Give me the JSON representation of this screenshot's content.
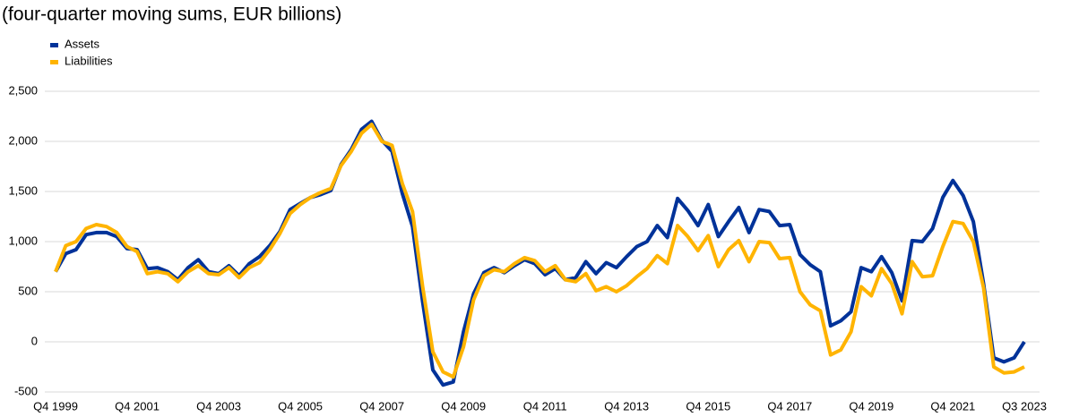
{
  "chart_data": {
    "type": "line",
    "title": "(four-quarter moving sums, EUR billions)",
    "categories": [
      "Q4 1999",
      null,
      null,
      null,
      null,
      null,
      null,
      null,
      "Q4 2001",
      null,
      null,
      null,
      null,
      null,
      null,
      null,
      "Q4 2003",
      null,
      null,
      null,
      null,
      null,
      null,
      null,
      "Q4 2005",
      null,
      null,
      null,
      null,
      null,
      null,
      null,
      "Q4 2007",
      null,
      null,
      null,
      null,
      null,
      null,
      null,
      "Q4 2009",
      null,
      null,
      null,
      null,
      null,
      null,
      null,
      "Q4 2011",
      null,
      null,
      null,
      null,
      null,
      null,
      null,
      "Q4 2013",
      null,
      null,
      null,
      null,
      null,
      null,
      null,
      "Q4 2015",
      null,
      null,
      null,
      null,
      null,
      null,
      null,
      "Q4 2017",
      null,
      null,
      null,
      null,
      null,
      null,
      null,
      "Q4 2019",
      null,
      null,
      null,
      null,
      null,
      null,
      null,
      "Q4 2021",
      null,
      null,
      null,
      null,
      null,
      null,
      "Q3 2023"
    ],
    "series": [
      {
        "name": "Assets",
        "color": "#003299",
        "values": [
          700,
          880,
          920,
          1070,
          1090,
          1090,
          1050,
          930,
          920,
          730,
          740,
          700,
          620,
          740,
          820,
          700,
          680,
          760,
          660,
          780,
          850,
          960,
          1100,
          1320,
          1380,
          1440,
          1470,
          1510,
          1770,
          1920,
          2120,
          2200,
          2010,
          1900,
          1480,
          1150,
          400,
          -280,
          -430,
          -400,
          100,
          480,
          690,
          740,
          690,
          760,
          820,
          780,
          670,
          730,
          620,
          640,
          800,
          680,
          790,
          740,
          850,
          950,
          1000,
          1160,
          1040,
          1430,
          1310,
          1160,
          1370,
          1050,
          1200,
          1340,
          1090,
          1320,
          1300,
          1160,
          1170,
          870,
          770,
          700,
          160,
          210,
          300,
          740,
          700,
          850,
          690,
          410,
          1010,
          1000,
          1130,
          1440,
          1610,
          1460,
          1200,
          580,
          -160,
          -200,
          -160,
          0
        ]
      },
      {
        "name": "Liabilities",
        "color": "#FFB400",
        "values": [
          700,
          960,
          1000,
          1130,
          1170,
          1150,
          1090,
          950,
          900,
          680,
          700,
          680,
          600,
          700,
          760,
          680,
          670,
          740,
          640,
          740,
          790,
          920,
          1080,
          1280,
          1370,
          1440,
          1490,
          1530,
          1760,
          1900,
          2080,
          2170,
          2000,
          1960,
          1580,
          1300,
          550,
          -100,
          -300,
          -350,
          -50,
          420,
          660,
          720,
          700,
          780,
          840,
          810,
          700,
          760,
          620,
          600,
          680,
          510,
          550,
          500,
          560,
          650,
          730,
          860,
          780,
          1160,
          1050,
          910,
          1060,
          750,
          920,
          1010,
          800,
          1000,
          990,
          830,
          840,
          500,
          370,
          310,
          -130,
          -80,
          100,
          550,
          460,
          730,
          580,
          280,
          800,
          650,
          660,
          950,
          1200,
          1180,
          1000,
          540,
          -250,
          -310,
          -300,
          -250
        ]
      }
    ],
    "ylim": [
      -500,
      2500
    ],
    "yticks": [
      -500,
      0,
      500,
      {
        "value": 1000,
        "label": "1,000"
      },
      {
        "value": 1500,
        "label": "1,500"
      },
      {
        "value": 2000,
        "label": "2,000"
      },
      {
        "value": 2500,
        "label": "2,500"
      }
    ],
    "grid": true,
    "legend": "top-left"
  }
}
